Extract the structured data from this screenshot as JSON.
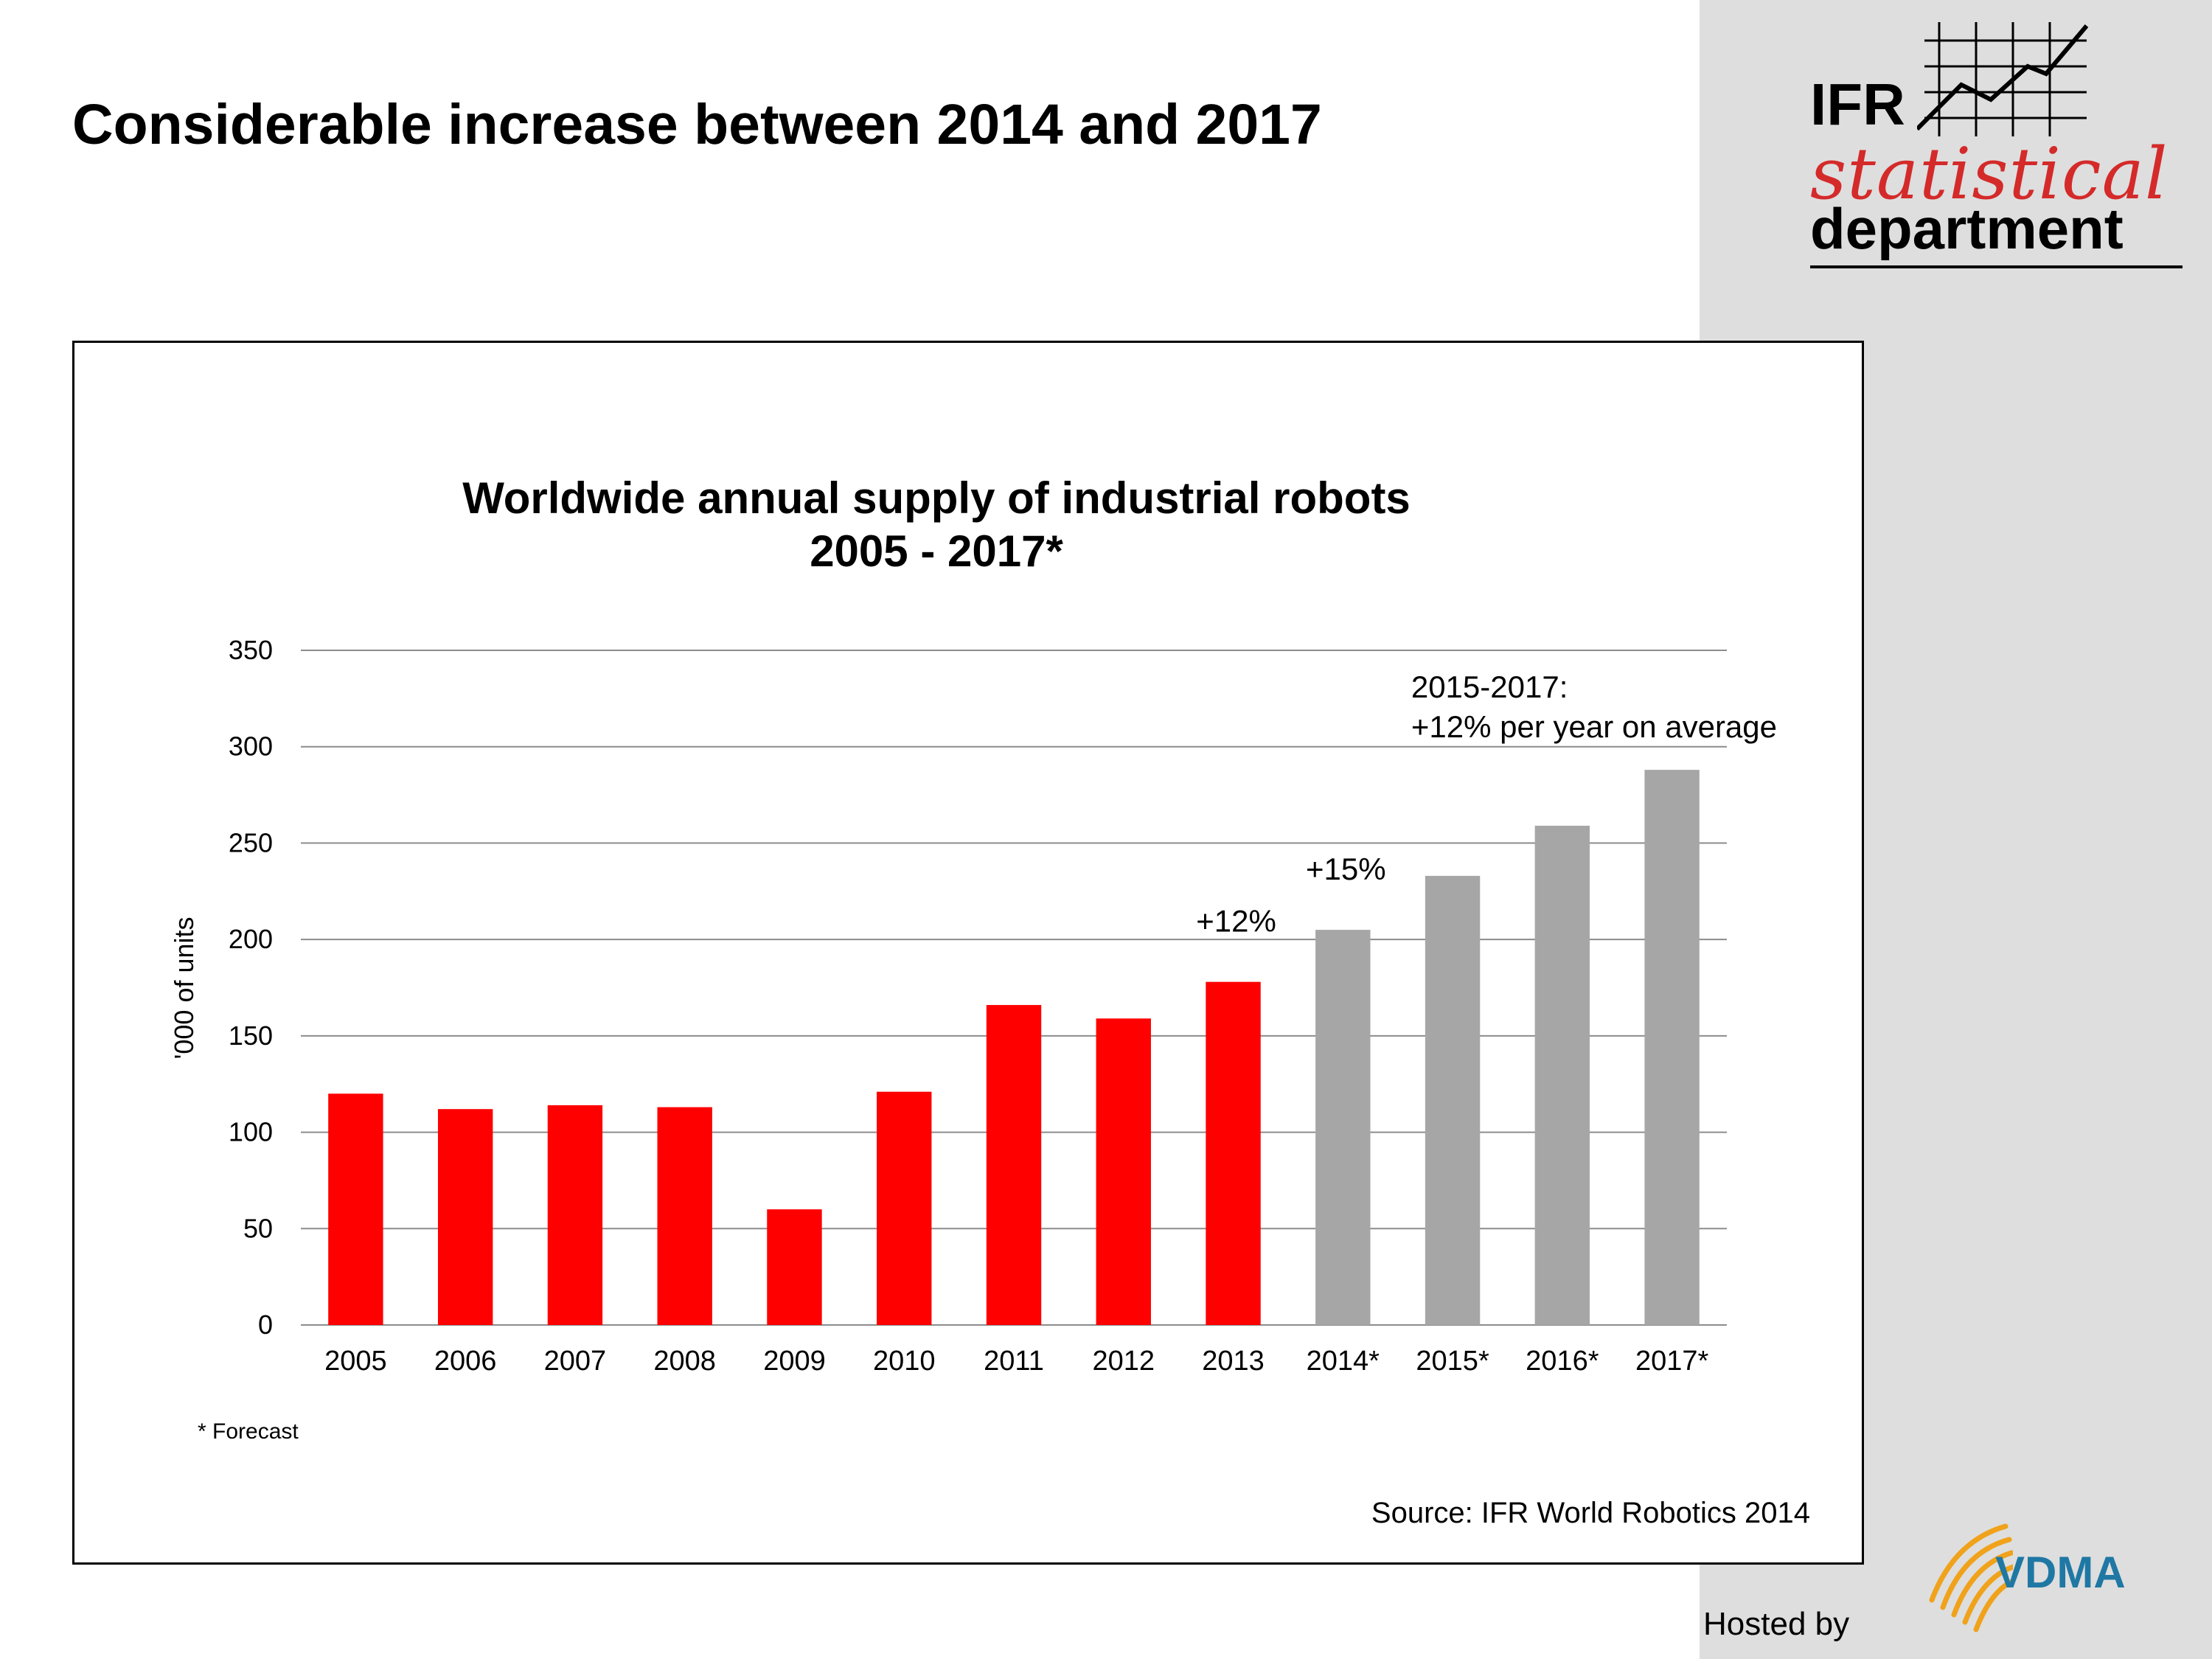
{
  "slide": {
    "title": "Considerable increase between 2014 and 2017",
    "hosted_by": "Hosted by"
  },
  "logo": {
    "line1": "IFR",
    "line2": "statistical",
    "line3": "department",
    "watermark": "statistical",
    "sponsor": "VDMA"
  },
  "chart_data": {
    "type": "bar",
    "title": "Worldwide annual supply of industrial robots",
    "subtitle": "2005 - 2017*",
    "ylabel": "'000 of units",
    "xlabel": "",
    "ylim": [
      0,
      350
    ],
    "yticks": [
      0,
      50,
      100,
      150,
      200,
      250,
      300,
      350
    ],
    "grid": true,
    "categories": [
      "2005",
      "2006",
      "2007",
      "2008",
      "2009",
      "2010",
      "2011",
      "2012",
      "2013",
      "2014*",
      "2015*",
      "2016*",
      "2017*"
    ],
    "values": [
      120,
      112,
      114,
      113,
      60,
      121,
      166,
      159,
      178,
      205,
      233,
      259,
      288
    ],
    "bar_colors": [
      "#ff0000",
      "#ff0000",
      "#ff0000",
      "#ff0000",
      "#ff0000",
      "#ff0000",
      "#ff0000",
      "#ff0000",
      "#ff0000",
      "#a6a6a6",
      "#a6a6a6",
      "#a6a6a6",
      "#a6a6a6"
    ],
    "annotations": [
      {
        "category": "2013",
        "text": "+12%"
      },
      {
        "category": "2014*",
        "text": "+15%"
      },
      {
        "category": "2016*",
        "text": "2015-2017:",
        "text2": "+12% per year on average"
      }
    ],
    "footnote": "* Forecast",
    "source": "Source: IFR World Robotics 2014"
  }
}
